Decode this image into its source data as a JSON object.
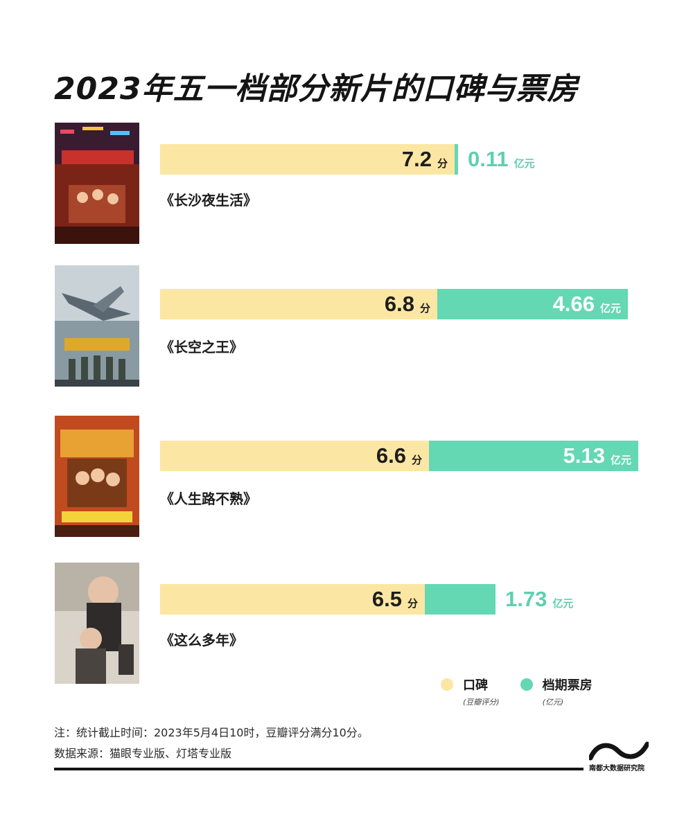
{
  "title": "2023年五一档部分新片的口碑与票房",
  "colors": {
    "score": "#fbe7a3",
    "box_office": "#63d8b3",
    "box_text": "#5fcfae"
  },
  "chart_data": {
    "type": "bar",
    "title": "2023年五一档部分新片的口碑与票房",
    "categories": [
      "《长沙夜生活》",
      "《长空之王》",
      "《人生路不熟》",
      "《这么多年》"
    ],
    "series": [
      {
        "name": "口碑",
        "unit": "分",
        "values": [
          7.2,
          6.8,
          6.6,
          6.5
        ]
      },
      {
        "name": "档期票房",
        "unit": "亿元",
        "values": [
          0.11,
          4.66,
          5.13,
          1.73
        ]
      }
    ]
  },
  "movies": [
    {
      "name": "《长沙夜生活》",
      "score": "7.2",
      "score_unit": "分",
      "box": "0.11",
      "box_unit": "亿元",
      "poster_icon": "poster-changsha-night-life"
    },
    {
      "name": "《长空之王》",
      "score": "6.8",
      "score_unit": "分",
      "box": "4.66",
      "box_unit": "亿元",
      "poster_icon": "poster-born-to-fly"
    },
    {
      "name": "《人生路不熟》",
      "score": "6.6",
      "score_unit": "分",
      "box": "5.13",
      "box_unit": "亿元",
      "poster_icon": "poster-godspeed"
    },
    {
      "name": "《这么多年》",
      "score": "6.5",
      "score_unit": "分",
      "box": "1.73",
      "box_unit": "亿元",
      "poster_icon": "poster-so-many-years"
    }
  ],
  "legend": [
    {
      "label": "口碑",
      "sub": "(豆瓣评分)"
    },
    {
      "label": "档期票房",
      "sub": "(亿元)"
    }
  ],
  "notes": {
    "line1": "注：统计截止时间：2023年5月4日10时，豆瓣评分满分10分。",
    "line2": "数据来源：猫眼专业版、灯塔专业版"
  },
  "logo": {
    "text": "南都大数据研究院"
  }
}
